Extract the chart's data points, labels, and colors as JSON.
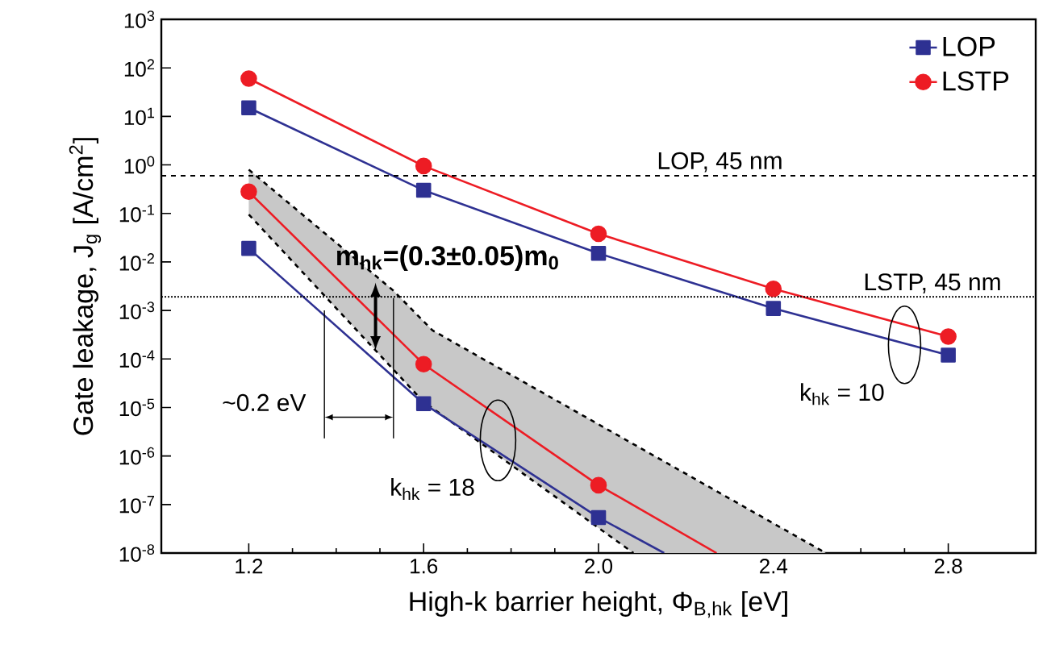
{
  "chart_data": {
    "type": "line",
    "xlabel": "High-k barrier height, Φ$_{B,hk}$ [eV]",
    "ylabel": "Gate leakage, J$_{g}$ [A/cm$^{2}$]",
    "xlim": [
      1.0,
      3.0
    ],
    "xticks": [
      {
        "value": 1.2,
        "label": "1.2"
      },
      {
        "value": 1.6,
        "label": "1.6"
      },
      {
        "value": 2.0,
        "label": "2.0"
      },
      {
        "value": 2.4,
        "label": "2.4"
      },
      {
        "value": 2.8,
        "label": "2.8"
      }
    ],
    "ylim": [
      1e-08,
      1000
    ],
    "log": "y",
    "yticks": [
      {
        "value": 1000,
        "label": "10$^{3}$"
      },
      {
        "value": 100,
        "label": "10$^{2}$"
      },
      {
        "value": 10,
        "label": "10$^{1}$"
      },
      {
        "value": 1,
        "label": "10$^{0}$"
      },
      {
        "value": 0.1,
        "label": "10$^{-1}$"
      },
      {
        "value": 0.01,
        "label": "10$^{-2}$"
      },
      {
        "value": 0.001,
        "label": "10$^{-3}$"
      },
      {
        "value": 0.0001,
        "label": "10$^{-4}$"
      },
      {
        "value": 1e-05,
        "label": "10$^{-5}$"
      },
      {
        "value": 1e-06,
        "label": "10$^{-6}$"
      },
      {
        "value": 1e-07,
        "label": "10$^{-7}$"
      },
      {
        "value": 1e-08,
        "label": "10$^{-8}$"
      }
    ],
    "legend": "top right",
    "grid": false,
    "series": [
      {
        "color": "#000000",
        "line_style": "dashed",
        "marker": "none",
        "x": [
          1.2,
          1.53,
          1.62,
          2.52
        ],
        "values": [
          0.8,
          0.0026,
          0.00039,
          1e-08
        ]
      },
      {
        "color": "#000000",
        "line_style": "dashed",
        "marker": "none",
        "x": [
          1.2,
          1.6,
          2.08
        ],
        "values": [
          0.095,
          1.3e-05,
          1e-08
        ]
      },
      {
        "name": "LOP",
        "color": "#2e3192",
        "marker": "square",
        "x": [
          1.2,
          1.6,
          2.0,
          2.4,
          2.8
        ],
        "values": [
          15,
          0.3,
          0.015,
          0.0011,
          0.00012
        ]
      },
      {
        "name": "LSTP",
        "color": "#ed1c24",
        "marker": "circle",
        "x": [
          1.2,
          1.6,
          2.0,
          2.4,
          2.8
        ],
        "values": [
          60,
          0.95,
          0.038,
          0.0028,
          0.00029
        ]
      },
      {
        "color": "#2e3192",
        "marker": "square",
        "x": [
          1.2,
          1.6,
          2.0
        ],
        "values": [
          0.019,
          1.2e-05,
          5.4e-08
        ]
      },
      {
        "color": "#2e3192",
        "marker": "none",
        "x": [
          2.0,
          2.15
        ],
        "values": [
          5.4e-08,
          1e-08
        ]
      },
      {
        "color": "#ed1c24",
        "marker": "circle",
        "x": [
          1.2,
          1.6,
          2.0
        ],
        "values": [
          0.28,
          7.8e-05,
          2.5e-07
        ]
      },
      {
        "color": "#ed1c24",
        "marker": "none",
        "x": [
          2.0,
          2.27
        ],
        "values": [
          2.5e-07,
          1e-08
        ]
      }
    ],
    "ref_lines": [
      {
        "axis": "y",
        "value": 0.6,
        "label": "LOP, 45 nm",
        "line_style": "dashed"
      },
      {
        "axis": "y",
        "value": 0.0019,
        "label": "LSTP, 45 nm",
        "line_style": "dotted"
      }
    ],
    "annotations": [
      {
        "text": "m$_{hk}$=(0.3±0.05)m$_{0}$",
        "x": 1.49,
        "y": 0.00075
      },
      "~0.2 eV",
      "k$_{hk}$ = 18",
      "k$_{hk}$ = 10"
    ]
  }
}
